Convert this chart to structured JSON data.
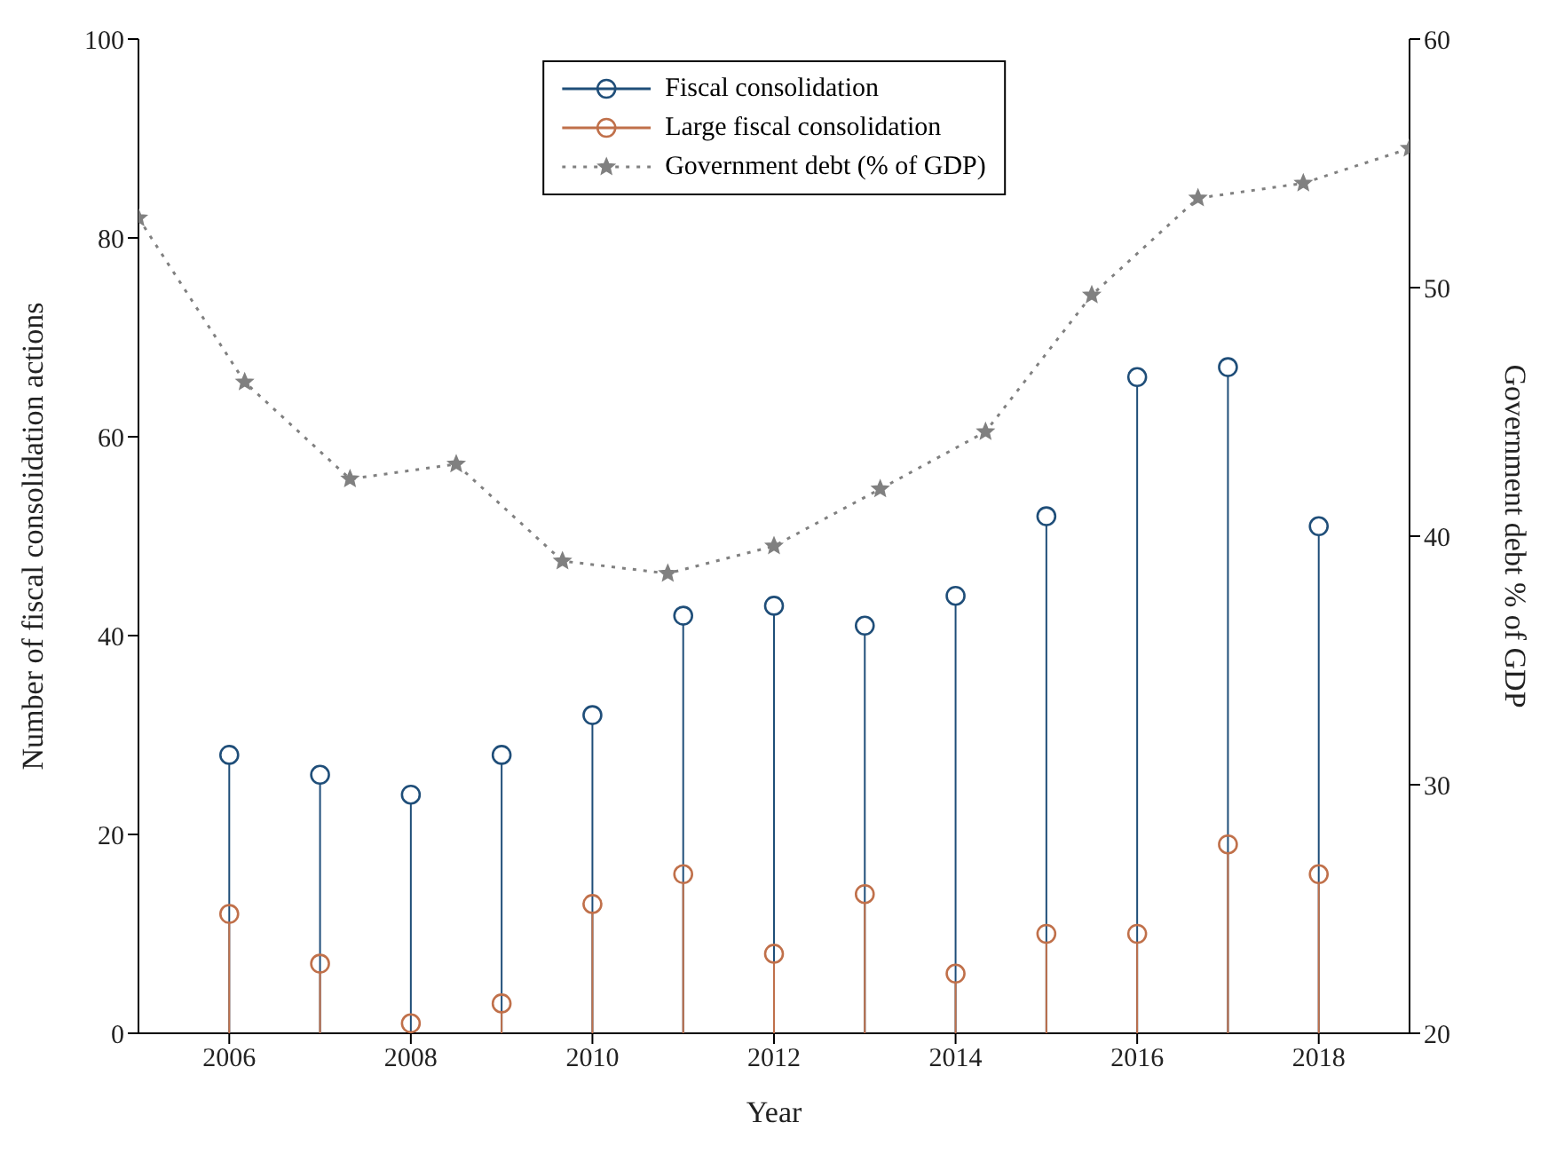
{
  "chart_data": {
    "type": "lollipop",
    "xlabel": "Year",
    "ylabel": "Number of fiscal consolidation actions",
    "y2label": "Government debt % of GDP",
    "x": [
      2006,
      2007,
      2008,
      2009,
      2010,
      2011,
      2012,
      2013,
      2014,
      2015,
      2016,
      2017,
      2018
    ],
    "series": [
      {
        "name": "Fiscal consolidation",
        "color": "#1f4e79",
        "marker": "circle",
        "values": [
          28,
          26,
          24,
          28,
          32,
          42,
          43,
          41,
          44,
          52,
          66,
          67,
          51
        ]
      },
      {
        "name": "Large fiscal consolidation",
        "color": "#c0704a",
        "marker": "circle",
        "values": [
          12,
          7,
          1,
          3,
          13,
          16,
          8,
          14,
          6,
          10,
          10,
          19,
          16
        ]
      },
      {
        "name": "Government debt (% of GDP)",
        "type": "line",
        "axis": "y2",
        "color": "#808080",
        "marker": "star",
        "line_style": "dotted",
        "x": [
          2005,
          2006.17,
          2007.33,
          2008.5,
          2009.67,
          2010.83,
          2012,
          2013.17,
          2014.33,
          2015.5,
          2016.67,
          2017.83,
          2019
        ],
        "values": [
          52.8,
          46.2,
          42.3,
          42.9,
          39.0,
          38.5,
          39.6,
          41.9,
          44.2,
          49.7,
          53.6,
          54.2,
          55.6
        ]
      }
    ],
    "xlim": [
      2005,
      2019
    ],
    "xticks": [
      2006,
      2008,
      2010,
      2012,
      2014,
      2016,
      2018
    ],
    "ylim": [
      0,
      100
    ],
    "yticks": [
      0,
      20,
      40,
      60,
      80,
      100
    ],
    "y2lim": [
      20,
      60
    ],
    "y2ticks": [
      20,
      30,
      40,
      50,
      60
    ],
    "grid": false,
    "legend": "top"
  }
}
